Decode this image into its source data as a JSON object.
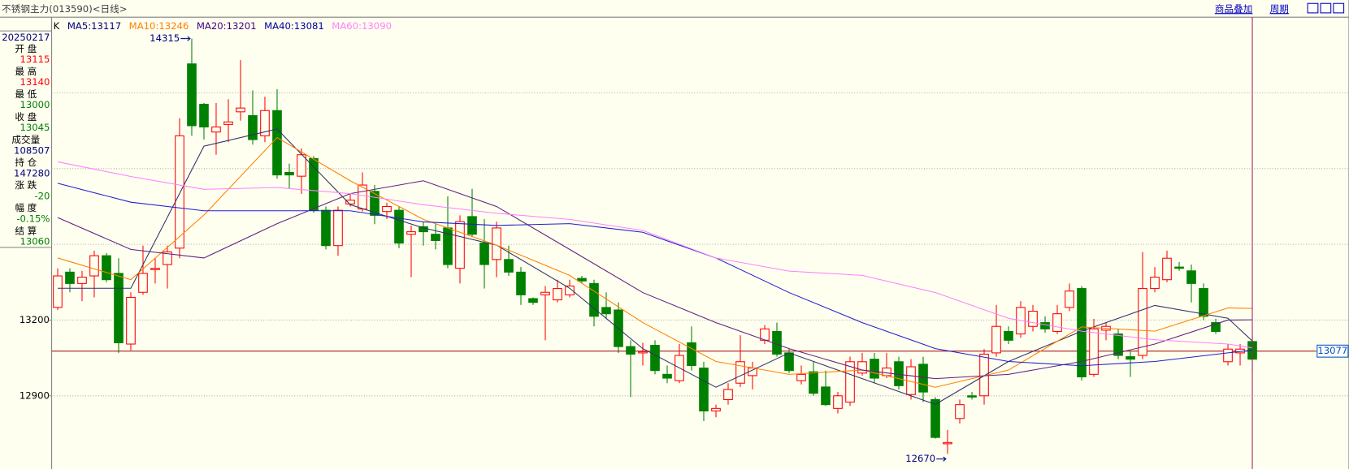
{
  "header": {
    "title": "不锈钢主力(013590)<日线>",
    "links": [
      "商品叠加",
      "周期"
    ]
  },
  "info_panel": {
    "date": "20250217",
    "items": [
      {
        "label": "开 盘",
        "value": "13115",
        "color": "#ff0000"
      },
      {
        "label": "最 高",
        "value": "13140",
        "color": "#ff0000"
      },
      {
        "label": "最 低",
        "value": "13000",
        "color": "#008000"
      },
      {
        "label": "收 盘",
        "value": "13045",
        "color": "#008000"
      },
      {
        "label": "成交量",
        "value": "108507",
        "color": "#000080"
      },
      {
        "label": "持 仓",
        "value": "147280",
        "color": "#000080"
      },
      {
        "label": "涨 跌",
        "value": "-20",
        "color": "#008000"
      },
      {
        "label": "幅 度",
        "value": "-0.15%",
        "color": "#008000"
      },
      {
        "label": "结 算",
        "value": "13060",
        "color": "#008000"
      }
    ]
  },
  "chart_data": {
    "type": "candlestick",
    "candle_label": "K",
    "legend_separator": ":",
    "up_color": "#ff0000",
    "down_color": "#008000",
    "ylim": [
      12610,
      14400
    ],
    "yticks": [
      12900,
      13200
    ],
    "ygrid": [
      12900,
      13200,
      13500,
      13800,
      14100
    ],
    "grid": true,
    "open": [
      13250,
      13390,
      13345,
      13375,
      13455,
      13385,
      13105,
      13310,
      13400,
      13420,
      13485,
      14215,
      14055,
      13945,
      13975,
      14025,
      14010,
      13930,
      14030,
      13785,
      13770,
      13840,
      13635,
      13495,
      13660,
      13640,
      13710,
      13630,
      13635,
      13540,
      13570,
      13540,
      13565,
      13405,
      13610,
      13505,
      13440,
      13440,
      13390,
      13285,
      13300,
      13280,
      13300,
      13365,
      13345,
      13250,
      13240,
      13095,
      13070,
      13100,
      12985,
      12960,
      13110,
      13010,
      12840,
      12885,
      12950,
      12980,
      13120,
      13155,
      13070,
      12960,
      12995,
      12935,
      12850,
      12875,
      12990,
      13045,
      12980,
      13035,
      12905,
      13025,
      12885,
      12710,
      12810,
      12900,
      12900,
      13070,
      13155,
      13145,
      13175,
      13190,
      13155,
      13250,
      13325,
      12985,
      13160,
      13145,
      13055,
      13060,
      13325,
      13360,
      13410,
      13395,
      13325,
      13190,
      13035,
      13070,
      13115
    ],
    "high": [
      13405,
      13405,
      13395,
      13475,
      13465,
      13445,
      13310,
      13495,
      13445,
      13495,
      14000,
      14315,
      14060,
      14060,
      14075,
      14230,
      14110,
      14085,
      14115,
      13820,
      13880,
      13850,
      13650,
      13650,
      13700,
      13785,
      13735,
      13665,
      13650,
      13575,
      13590,
      13580,
      13690,
      13615,
      13720,
      13600,
      13590,
      13495,
      13410,
      13290,
      13335,
      13360,
      13360,
      13375,
      13360,
      13310,
      13270,
      13120,
      13110,
      13120,
      13020,
      13105,
      13175,
      13035,
      12865,
      12950,
      13140,
      13035,
      13180,
      13190,
      13085,
      13020,
      13035,
      13000,
      12915,
      13055,
      13070,
      13070,
      13070,
      13055,
      13045,
      13055,
      12895,
      12765,
      12885,
      12915,
      13085,
      13260,
      13175,
      13275,
      13260,
      13215,
      13260,
      13345,
      13335,
      13205,
      13190,
      13165,
      13075,
      13470,
      13410,
      13475,
      13430,
      13420,
      13345,
      13205,
      13105,
      13105,
      13140
    ],
    "low": [
      13240,
      13310,
      13275,
      13290,
      13350,
      13070,
      13080,
      13300,
      13345,
      13325,
      13445,
      13930,
      13915,
      13855,
      13905,
      13990,
      13895,
      13905,
      13760,
      13720,
      13700,
      13625,
      13480,
      13455,
      13650,
      13630,
      13580,
      13600,
      13485,
      13370,
      13495,
      13480,
      13405,
      13345,
      13530,
      13325,
      13370,
      13375,
      13260,
      13260,
      13120,
      13270,
      13290,
      13345,
      13175,
      13205,
      13070,
      12895,
      13020,
      12985,
      12950,
      12950,
      13000,
      12800,
      12815,
      12865,
      12935,
      12925,
      13105,
      13055,
      12990,
      12945,
      12900,
      12860,
      12830,
      12860,
      12980,
      12950,
      12970,
      12925,
      12885,
      12875,
      12730,
      12670,
      12790,
      12885,
      12865,
      13055,
      13105,
      13130,
      13155,
      13150,
      13145,
      13235,
      12960,
      12975,
      13120,
      13045,
      12975,
      13045,
      13310,
      13350,
      13395,
      13270,
      13200,
      13145,
      13020,
      13020,
      13000
    ],
    "close": [
      13375,
      13345,
      13370,
      13455,
      13360,
      13110,
      13290,
      13385,
      13405,
      13470,
      13930,
      13970,
      13965,
      13965,
      13985,
      14040,
      13915,
      14030,
      13775,
      13775,
      13855,
      13635,
      13495,
      13635,
      13675,
      13735,
      13615,
      13650,
      13505,
      13550,
      13550,
      13515,
      13420,
      13590,
      13540,
      13420,
      13565,
      13390,
      13300,
      13270,
      13310,
      13325,
      13335,
      13355,
      13215,
      13225,
      13095,
      13065,
      13075,
      13000,
      12970,
      13060,
      13020,
      12840,
      12850,
      12925,
      13035,
      13010,
      13165,
      13065,
      13000,
      12985,
      12910,
      12865,
      12900,
      13035,
      13035,
      12970,
      13010,
      12940,
      13015,
      12915,
      12735,
      12715,
      12865,
      12895,
      13065,
      13175,
      13120,
      13250,
      13235,
      13165,
      13225,
      13315,
      12975,
      13165,
      13175,
      13060,
      13045,
      13325,
      13370,
      13445,
      13405,
      13345,
      13215,
      13155,
      13085,
      13085,
      13045
    ],
    "high_label": 14315,
    "low_label": 12670,
    "price_line": 13077,
    "price_line_color": "#a00000",
    "series": [
      {
        "name": "MA5",
        "last": 13117,
        "color": "#303068",
        "label_color": "#000080",
        "x": [
          0,
          6,
          12,
          18,
          24,
          30,
          36,
          42,
          48,
          54,
          60,
          66,
          72,
          78,
          84,
          90,
          96,
          98
        ],
        "values": [
          13326,
          13326,
          13889,
          13957,
          13657,
          13565,
          13497,
          13326,
          13087,
          12934,
          13070,
          12968,
          12866,
          13036,
          13156,
          13258,
          13207,
          13117
        ]
      },
      {
        "name": "MA10",
        "last": 13246,
        "color": "#ff8000",
        "label_color": "#ff8000",
        "x": [
          0,
          6,
          12,
          18,
          24,
          30,
          36,
          42,
          48,
          54,
          60,
          66,
          72,
          78,
          84,
          90,
          96,
          98
        ],
        "values": [
          13446,
          13360,
          13616,
          13923,
          13752,
          13599,
          13497,
          13377,
          13190,
          13036,
          12985,
          13002,
          12934,
          13002,
          13173,
          13156,
          13248,
          13246
        ]
      },
      {
        "name": "MA20",
        "last": 13201,
        "color": "#602080",
        "label_color": "#400080",
        "x": [
          0,
          6,
          12,
          18,
          24,
          30,
          36,
          42,
          48,
          54,
          60,
          66,
          72,
          78,
          84,
          90,
          96,
          98
        ],
        "values": [
          13606,
          13480,
          13446,
          13582,
          13701,
          13752,
          13650,
          13480,
          13309,
          13190,
          13087,
          13002,
          12968,
          12985,
          13036,
          13105,
          13200,
          13201
        ]
      },
      {
        "name": "MA40",
        "last": 13081,
        "color": "#2020d0",
        "label_color": "#0000a0",
        "x": [
          0,
          6,
          12,
          18,
          24,
          30,
          36,
          42,
          48,
          54,
          60,
          66,
          72,
          78,
          84,
          90,
          96,
          98
        ],
        "values": [
          13742,
          13667,
          13633,
          13633,
          13633,
          13589,
          13575,
          13582,
          13548,
          13446,
          13309,
          13190,
          13087,
          13036,
          13019,
          13036,
          13070,
          13081
        ]
      },
      {
        "name": "MA60",
        "last": 13090,
        "color": "#ff80ff",
        "label_color": "#ff80ff",
        "x": [
          0,
          6,
          12,
          18,
          24,
          30,
          36,
          42,
          48,
          54,
          60,
          66,
          72,
          78,
          84,
          90,
          96,
          98
        ],
        "values": [
          13827,
          13769,
          13718,
          13725,
          13701,
          13657,
          13623,
          13599,
          13555,
          13446,
          13394,
          13377,
          13309,
          13207,
          13156,
          13122,
          13105,
          13090
        ]
      }
    ]
  }
}
